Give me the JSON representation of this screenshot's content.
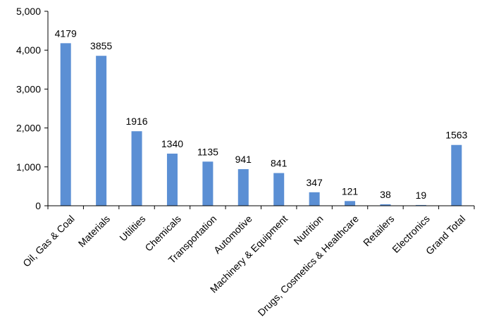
{
  "chart_data": {
    "type": "bar",
    "categories": [
      "Oil, Gas & Coal",
      "Materials",
      "Utilities",
      "Chemicals",
      "Transportation",
      "Automotive",
      "Machinery & Equipment",
      "Nutrition",
      "Drugs, Cosmetics & Healthcare",
      "Retailers",
      "Electronics",
      "Grand Total"
    ],
    "values": [
      4179,
      3855,
      1916,
      1340,
      1135,
      941,
      841,
      347,
      121,
      38,
      19,
      1563
    ],
    "data_labels": [
      "4179",
      "3855",
      "1916",
      "1340",
      "1135",
      "941",
      "841",
      "347",
      "121",
      "38",
      "19",
      "1563"
    ],
    "ylim": [
      0,
      5000
    ],
    "yticks": [
      0,
      1000,
      2000,
      3000,
      4000,
      5000
    ],
    "ytick_labels": [
      "0",
      "1,000",
      "2,000",
      "3,000",
      "4,000",
      "5,000"
    ],
    "title": "",
    "xlabel": "",
    "ylabel": "",
    "grid": false,
    "legend": "none",
    "bar_color": "#5B8FD4",
    "axis_color": "#000000"
  }
}
